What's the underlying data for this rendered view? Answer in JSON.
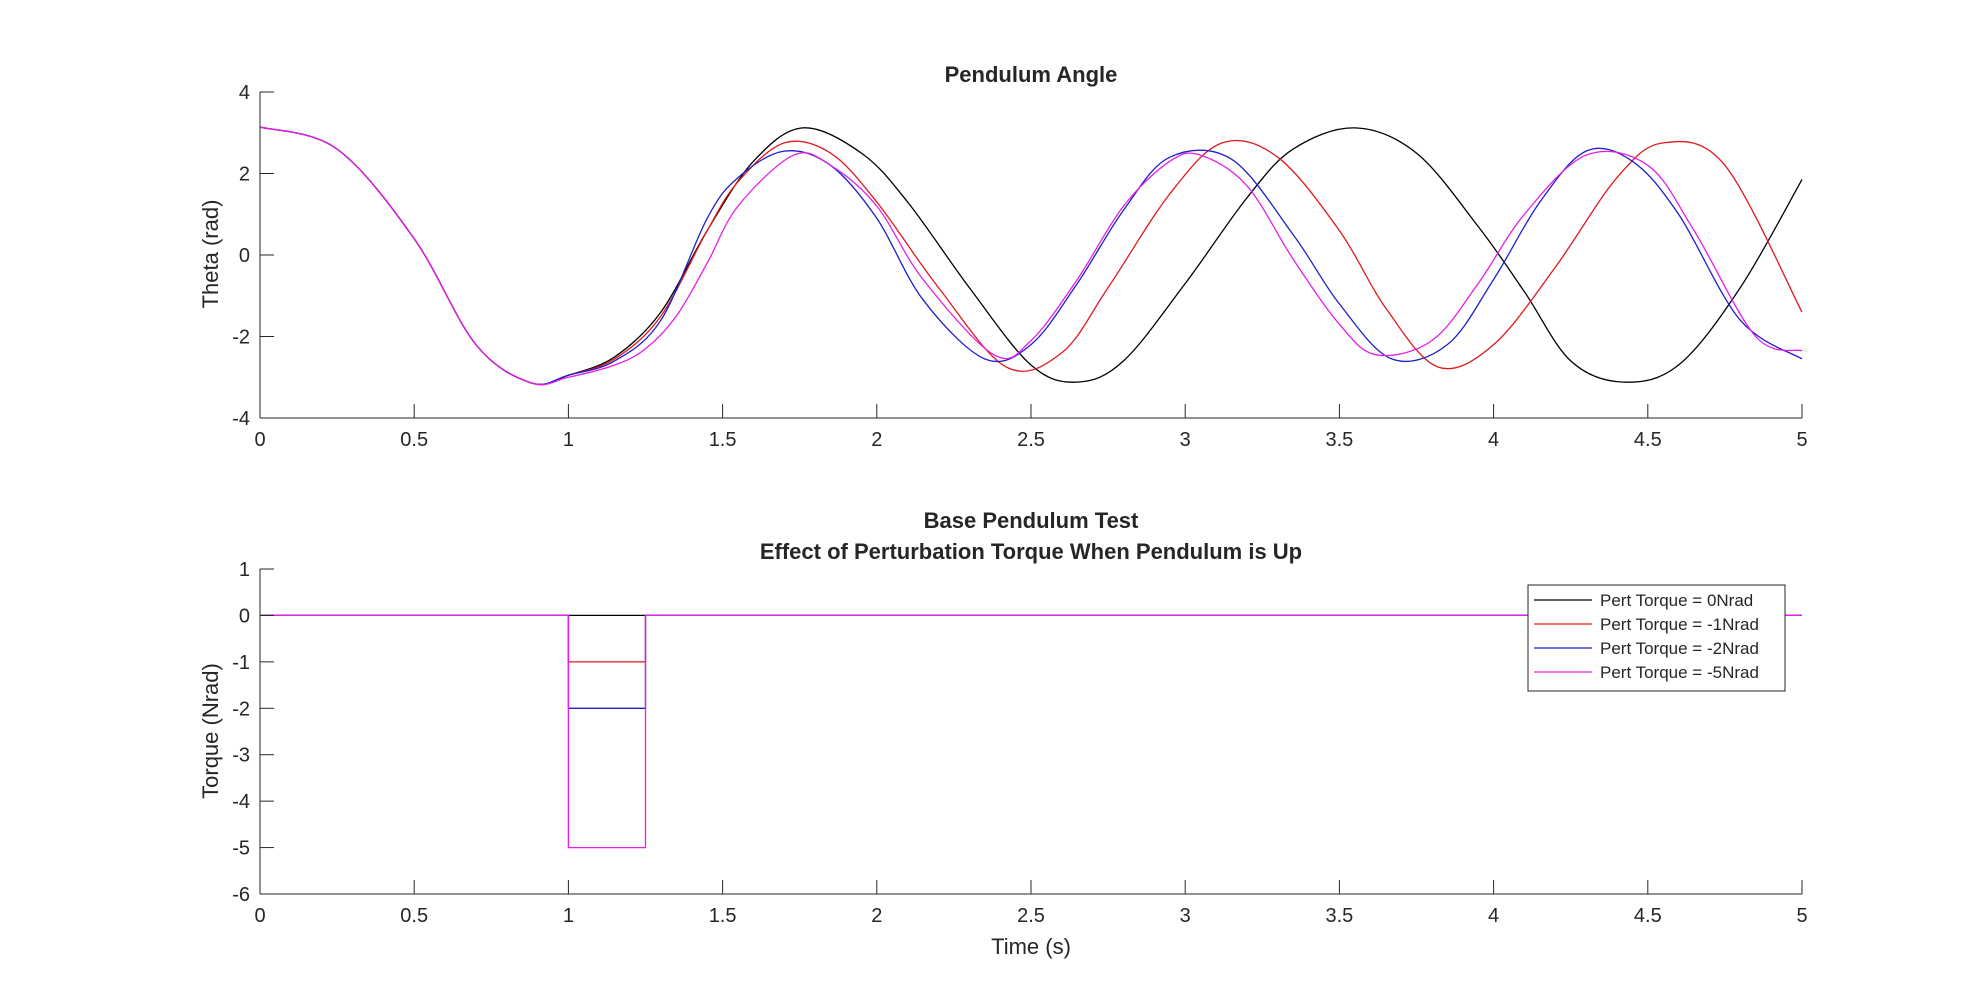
{
  "chart_data": [
    {
      "type": "line",
      "title": "Pendulum Angle",
      "xlabel": "",
      "ylabel": "Theta (rad)",
      "xlim": [
        0,
        5
      ],
      "ylim": [
        -4,
        4
      ],
      "xticks": [
        "0",
        "0.5",
        "1",
        "1.5",
        "2",
        "2.5",
        "3",
        "3.5",
        "4",
        "4.5",
        "5"
      ],
      "yticks": [
        "-4",
        "-2",
        "0",
        "2",
        "4"
      ],
      "grid": false,
      "series": [
        {
          "color": "#000000",
          "x": [
            0,
            0.25,
            0.5,
            0.7,
            0.88,
            1.0,
            1.15,
            1.3,
            1.45,
            1.6,
            1.76,
            1.95,
            2.1,
            2.3,
            2.5,
            2.65,
            2.8,
            3.0,
            3.2,
            3.35,
            3.55,
            3.75,
            3.95,
            4.1,
            4.25,
            4.42,
            4.6,
            4.8,
            5.0
          ],
          "y": [
            3.14,
            2.6,
            0.4,
            -2.2,
            -3.14,
            -2.95,
            -2.5,
            -1.4,
            0.6,
            2.3,
            3.12,
            2.5,
            1.3,
            -0.8,
            -2.7,
            -3.12,
            -2.6,
            -0.7,
            1.4,
            2.6,
            3.12,
            2.5,
            0.7,
            -0.9,
            -2.6,
            -3.12,
            -2.7,
            -0.8,
            1.85
          ]
        },
        {
          "color": "#e0191d",
          "x": [
            0,
            0.25,
            0.5,
            0.7,
            0.88,
            1.0,
            1.15,
            1.3,
            1.45,
            1.55,
            1.7,
            1.85,
            2.0,
            2.2,
            2.42,
            2.6,
            2.75,
            2.95,
            3.12,
            3.3,
            3.5,
            3.65,
            3.82,
            4.0,
            4.2,
            4.4,
            4.55,
            4.75,
            5.0
          ],
          "y": [
            3.14,
            2.6,
            0.4,
            -2.2,
            -3.14,
            -2.95,
            -2.55,
            -1.5,
            0.6,
            1.8,
            2.75,
            2.5,
            1.3,
            -0.8,
            -2.75,
            -2.4,
            -0.8,
            1.5,
            2.75,
            2.4,
            0.6,
            -1.3,
            -2.75,
            -2.2,
            -0.3,
            1.9,
            2.75,
            2.2,
            -1.4
          ]
        },
        {
          "color": "#1f1fcc",
          "x": [
            0,
            0.25,
            0.5,
            0.7,
            0.88,
            1.0,
            1.15,
            1.3,
            1.45,
            1.55,
            1.7,
            1.85,
            2.0,
            2.15,
            2.35,
            2.5,
            2.65,
            2.8,
            2.95,
            3.15,
            3.35,
            3.5,
            3.67,
            3.85,
            4.0,
            4.15,
            4.3,
            4.45,
            4.6,
            4.8,
            5.0
          ],
          "y": [
            3.14,
            2.6,
            0.4,
            -2.2,
            -3.14,
            -2.95,
            -2.6,
            -1.6,
            0.9,
            1.9,
            2.55,
            2.2,
            0.9,
            -1.1,
            -2.55,
            -2.2,
            -0.7,
            1.1,
            2.4,
            2.35,
            0.5,
            -1.2,
            -2.55,
            -2.2,
            -0.6,
            1.3,
            2.55,
            2.3,
            1.0,
            -1.6,
            -2.55
          ]
        },
        {
          "color": "#e61ee6",
          "x": [
            0,
            0.25,
            0.5,
            0.7,
            0.88,
            1.0,
            1.15,
            1.25,
            1.35,
            1.45,
            1.55,
            1.73,
            1.85,
            2.0,
            2.15,
            2.38,
            2.5,
            2.65,
            2.8,
            2.95,
            3.05,
            3.2,
            3.35,
            3.5,
            3.62,
            3.8,
            3.95,
            4.1,
            4.3,
            4.5,
            4.65,
            4.85,
            5.0
          ],
          "y": [
            3.14,
            2.6,
            0.4,
            -2.2,
            -3.14,
            -3.0,
            -2.7,
            -2.3,
            -1.5,
            -0.2,
            1.2,
            2.45,
            2.2,
            1.2,
            -0.6,
            -2.45,
            -2.1,
            -0.6,
            1.2,
            2.3,
            2.45,
            1.7,
            -0.1,
            -1.7,
            -2.45,
            -2.1,
            -0.7,
            1.0,
            2.45,
            2.2,
            0.6,
            -2.0,
            -2.35
          ]
        }
      ]
    },
    {
      "type": "line",
      "title": "Base Pendulum Test",
      "subtitle": "Effect of Perturbation Torque When Pendulum is Up",
      "xlabel": "Time (s)",
      "ylabel": "Torque (Nrad)",
      "xlim": [
        0,
        5
      ],
      "ylim": [
        -6,
        1
      ],
      "xticks": [
        "0",
        "0.5",
        "1",
        "1.5",
        "2",
        "2.5",
        "3",
        "3.5",
        "4",
        "4.5",
        "5"
      ],
      "yticks": [
        "-6",
        "-5",
        "-4",
        "-3",
        "-2",
        "-1",
        "0",
        "1"
      ],
      "grid": false,
      "legend_position": "top-right",
      "series": [
        {
          "name": "Pert Torque = 0Nrad",
          "color": "#000000",
          "x": [
            0,
            1,
            1,
            1.25,
            1.25,
            5
          ],
          "y": [
            0,
            0,
            0,
            0,
            0,
            0
          ]
        },
        {
          "name": "Pert Torque = -1Nrad",
          "color": "#e0191d",
          "x": [
            0,
            1,
            1,
            1.25,
            1.25,
            5
          ],
          "y": [
            0,
            0,
            -1,
            -1,
            0,
            0
          ]
        },
        {
          "name": "Pert Torque = -2Nrad",
          "color": "#1f1fcc",
          "x": [
            0,
            1,
            1,
            1.25,
            1.25,
            5
          ],
          "y": [
            0,
            0,
            -2,
            -2,
            0,
            0
          ]
        },
        {
          "name": "Pert Torque = -5Nrad",
          "color": "#e61ee6",
          "x": [
            0,
            1,
            1,
            1.25,
            1.25,
            5
          ],
          "y": [
            0,
            0,
            -5,
            -5,
            0,
            0
          ]
        }
      ]
    }
  ]
}
